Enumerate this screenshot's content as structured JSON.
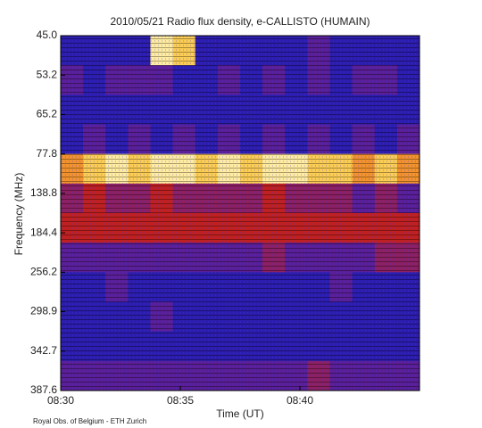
{
  "chart_data": {
    "type": "heatmap",
    "title": "2010/05/21  Radio flux density, e-CALLISTO (HUMAIN)",
    "x_label": "Time (UT)",
    "y_label": "Frequency (MHz)",
    "source": "Royal Obs. of Belgium - ETH Zurich",
    "xlim": [
      510,
      525
    ],
    "xticks": [
      {
        "value": 510,
        "label": "08:30"
      },
      {
        "value": 515,
        "label": "08:35"
      },
      {
        "value": 520,
        "label": "08:40"
      }
    ],
    "yticks": [
      {
        "value": 45,
        "label": "45.0"
      },
      {
        "value": 53.2,
        "label": "53.2"
      },
      {
        "value": 65.2,
        "label": "65.2"
      },
      {
        "value": 77.8,
        "label": "77.8"
      },
      {
        "value": 138.8,
        "label": "138.8"
      },
      {
        "value": 184.4,
        "label": "184.4"
      },
      {
        "value": 256.2,
        "label": "256.2"
      },
      {
        "value": 298.9,
        "label": "298.9"
      },
      {
        "value": 342.7,
        "label": "342.7"
      },
      {
        "value": 387.6,
        "label": "387.6"
      }
    ],
    "zlim": [
      0,
      10
    ],
    "colormap": [
      "#000010",
      "#1c1cb4",
      "#6a2090",
      "#c02020",
      "#f08020",
      "#ffe060",
      "#ffffff"
    ],
    "z": [
      [
        2,
        2,
        2,
        2,
        9,
        8,
        2,
        2,
        2,
        2,
        2,
        3,
        2,
        2,
        2,
        2
      ],
      [
        3,
        2,
        3,
        3,
        3,
        2,
        2,
        3,
        2,
        3,
        2,
        3,
        2,
        3,
        3,
        2
      ],
      [
        2,
        2,
        2,
        2,
        2,
        2,
        2,
        2,
        2,
        2,
        2,
        2,
        2,
        2,
        2,
        2
      ],
      [
        2,
        3,
        2,
        3,
        2,
        3,
        2,
        3,
        2,
        3,
        2,
        3,
        2,
        3,
        2,
        3
      ],
      [
        7,
        8,
        9,
        8,
        9,
        9,
        8,
        9,
        8,
        9,
        9,
        8,
        8,
        7,
        8,
        7
      ],
      [
        4,
        5,
        4,
        4,
        5,
        4,
        4,
        4,
        4,
        5,
        4,
        4,
        4,
        3,
        4,
        3
      ],
      [
        5,
        5,
        5,
        5,
        5,
        5,
        5,
        5,
        5,
        5,
        5,
        5,
        5,
        5,
        5,
        5
      ],
      [
        3,
        3,
        3,
        3,
        3,
        3,
        3,
        3,
        3,
        4,
        3,
        3,
        3,
        3,
        4,
        4
      ],
      [
        2,
        2,
        3,
        2,
        2,
        2,
        2,
        2,
        2,
        2,
        2,
        2,
        3,
        2,
        2,
        2
      ],
      [
        2,
        2,
        2,
        2,
        3,
        2,
        2,
        2,
        2,
        2,
        2,
        2,
        2,
        2,
        2,
        2
      ],
      [
        2,
        2,
        2,
        2,
        2,
        2,
        2,
        2,
        2,
        2,
        2,
        2,
        2,
        2,
        2,
        2
      ],
      [
        3,
        3,
        3,
        3,
        3,
        3,
        3,
        3,
        3,
        3,
        3,
        4,
        3,
        3,
        3,
        3
      ]
    ]
  }
}
